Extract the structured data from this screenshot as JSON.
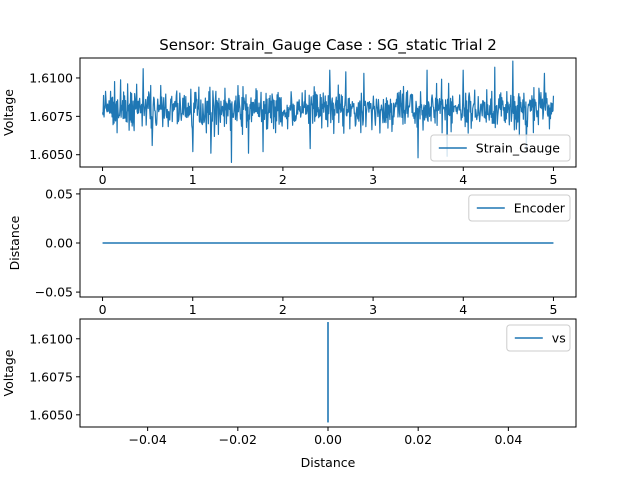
{
  "chart_data": {
    "title": "Sensor: Strain_Gauge Case : SG_static Trial 2",
    "colors": {
      "series": "#1f77b4",
      "frame": "#000000"
    },
    "panels": [
      {
        "type": "line",
        "xlim": [
          -0.25,
          5.25
        ],
        "ylim": [
          1.6042,
          1.6113
        ],
        "xticks": [
          0,
          1,
          2,
          3,
          4,
          5
        ],
        "xticklabels": [
          "0",
          "1",
          "2",
          "3",
          "4",
          "5"
        ],
        "yticks": [
          1.605,
          1.6075,
          1.61
        ],
        "yticklabels": [
          "1.6050",
          "1.6075",
          "1.6100"
        ],
        "xlabel": "",
        "ylabel": "Voltage",
        "legend": {
          "label": "Strain_Gauge",
          "position": "lower-right"
        },
        "series": [
          {
            "name": "Strain_Gauge",
            "noise": true,
            "x_range": [
              0,
              5
            ],
            "center": 1.6079,
            "band": [
              1.6063,
              1.6096
            ],
            "spikes": [
              [
                0.45,
                1.6106
              ],
              [
                0.55,
                1.6056
              ],
              [
                1.0,
                1.6052
              ],
              [
                1.2,
                1.6051
              ],
              [
                1.43,
                1.6045
              ],
              [
                1.62,
                1.6051
              ],
              [
                1.78,
                1.6052
              ],
              [
                2.3,
                1.6054
              ],
              [
                2.52,
                1.6105
              ],
              [
                2.7,
                1.6104
              ],
              [
                2.9,
                1.6103
              ],
              [
                3.5,
                1.6048
              ],
              [
                3.6,
                1.6105
              ],
              [
                3.82,
                1.6049
              ],
              [
                4.0,
                1.6105
              ],
              [
                4.35,
                1.6107
              ],
              [
                4.55,
                1.6111
              ],
              [
                4.7,
                1.6053
              ],
              [
                4.9,
                1.6103
              ]
            ]
          }
        ]
      },
      {
        "type": "line",
        "xlim": [
          -0.25,
          5.25
        ],
        "ylim": [
          -0.055,
          0.055
        ],
        "xticks": [
          0,
          1,
          2,
          3,
          4,
          5
        ],
        "xticklabels": [
          "0",
          "1",
          "2",
          "3",
          "4",
          "5"
        ],
        "yticks": [
          -0.05,
          0,
          0.05
        ],
        "yticklabels": [
          "−0.05",
          "0.00",
          "0.05"
        ],
        "xlabel": "",
        "ylabel": "Distance",
        "legend": {
          "label": "Encoder",
          "position": "upper-right"
        },
        "series": [
          {
            "name": "Encoder",
            "x": [
              0,
              5
            ],
            "y": [
              0,
              0
            ]
          }
        ]
      },
      {
        "type": "line",
        "xlim": [
          -0.055,
          0.055
        ],
        "ylim": [
          1.6042,
          1.6113
        ],
        "xticks": [
          -0.04,
          -0.02,
          0,
          0.02,
          0.04
        ],
        "xticklabels": [
          "−0.04",
          "−0.02",
          "0.00",
          "0.02",
          "0.04"
        ],
        "yticks": [
          1.605,
          1.6075,
          1.61
        ],
        "yticklabels": [
          "1.6050",
          "1.6075",
          "1.6100"
        ],
        "xlabel": "Distance",
        "ylabel": "Voltage",
        "legend": {
          "label": "vs",
          "position": "upper-right"
        },
        "series": [
          {
            "name": "vs",
            "x": [
              0,
              0
            ],
            "y": [
              1.6045,
              1.6111
            ]
          }
        ]
      }
    ]
  }
}
